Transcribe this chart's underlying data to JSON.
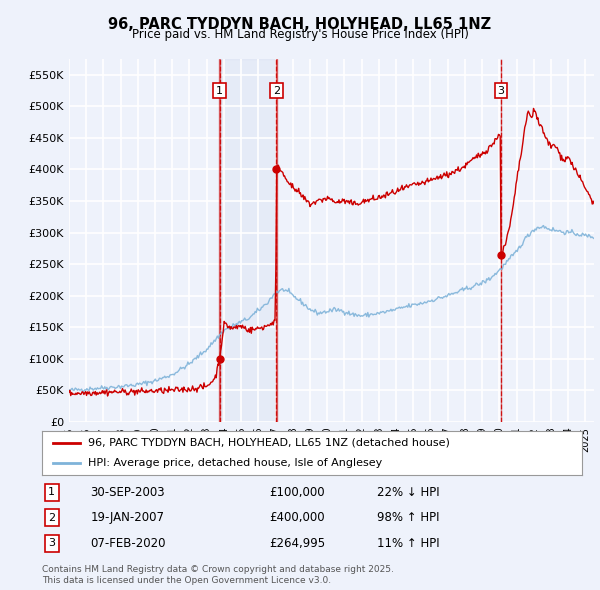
{
  "title": "96, PARC TYDDYN BACH, HOLYHEAD, LL65 1NZ",
  "subtitle": "Price paid vs. HM Land Registry's House Price Index (HPI)",
  "ylim": [
    0,
    575000
  ],
  "yticks": [
    0,
    50000,
    100000,
    150000,
    200000,
    250000,
    300000,
    350000,
    400000,
    450000,
    500000,
    550000
  ],
  "ytick_labels": [
    "£0",
    "£50K",
    "£100K",
    "£150K",
    "£200K",
    "£250K",
    "£300K",
    "£350K",
    "£400K",
    "£450K",
    "£500K",
    "£550K"
  ],
  "background_color": "#eef2fb",
  "plot_bg_color": "#eef2fb",
  "grid_color": "#ffffff",
  "line_color_red": "#cc0000",
  "line_color_blue": "#7fb3d9",
  "sale_markers": [
    {
      "num": 1,
      "date_idx": 2003.75,
      "price": 100000,
      "label": "30-SEP-2003",
      "amount": "£100,000",
      "pct": "22% ↓ HPI"
    },
    {
      "num": 2,
      "date_idx": 2007.05,
      "price": 400000,
      "label": "19-JAN-2007",
      "amount": "£400,000",
      "pct": "98% ↑ HPI"
    },
    {
      "num": 3,
      "date_idx": 2020.1,
      "price": 264995,
      "label": "07-FEB-2020",
      "amount": "£264,995",
      "pct": "11% ↑ HPI"
    }
  ],
  "legend_entries": [
    "96, PARC TYDDYN BACH, HOLYHEAD, LL65 1NZ (detached house)",
    "HPI: Average price, detached house, Isle of Anglesey"
  ],
  "footer": "Contains HM Land Registry data © Crown copyright and database right 2025.\nThis data is licensed under the Open Government Licence v3.0.",
  "xmin": 1995,
  "xmax": 2025.5,
  "hpi_anchors": [
    [
      1995.0,
      50000
    ],
    [
      1996.0,
      52000
    ],
    [
      1997.0,
      54000
    ],
    [
      1998.0,
      56000
    ],
    [
      1999.0,
      59000
    ],
    [
      2000.0,
      65000
    ],
    [
      2001.0,
      75000
    ],
    [
      2002.0,
      92000
    ],
    [
      2003.0,
      115000
    ],
    [
      2004.0,
      145000
    ],
    [
      2005.5,
      165000
    ],
    [
      2006.5,
      188000
    ],
    [
      2007.0,
      205000
    ],
    [
      2007.5,
      210000
    ],
    [
      2008.0,
      200000
    ],
    [
      2008.5,
      190000
    ],
    [
      2009.0,
      178000
    ],
    [
      2009.5,
      172000
    ],
    [
      2010.0,
      175000
    ],
    [
      2010.5,
      178000
    ],
    [
      2011.0,
      175000
    ],
    [
      2011.5,
      170000
    ],
    [
      2012.0,
      168000
    ],
    [
      2012.5,
      170000
    ],
    [
      2013.0,
      172000
    ],
    [
      2013.5,
      175000
    ],
    [
      2014.0,
      178000
    ],
    [
      2014.5,
      182000
    ],
    [
      2015.0,
      185000
    ],
    [
      2015.5,
      188000
    ],
    [
      2016.0,
      192000
    ],
    [
      2016.5,
      196000
    ],
    [
      2017.0,
      200000
    ],
    [
      2017.5,
      205000
    ],
    [
      2018.0,
      210000
    ],
    [
      2018.5,
      215000
    ],
    [
      2019.0,
      220000
    ],
    [
      2019.5,
      228000
    ],
    [
      2020.0,
      240000
    ],
    [
      2020.5,
      255000
    ],
    [
      2021.0,
      270000
    ],
    [
      2021.5,
      290000
    ],
    [
      2022.0,
      305000
    ],
    [
      2022.5,
      310000
    ],
    [
      2023.0,
      305000
    ],
    [
      2023.5,
      302000
    ],
    [
      2024.0,
      300000
    ],
    [
      2024.5,
      298000
    ],
    [
      2025.0,
      295000
    ],
    [
      2025.5,
      293000
    ]
  ],
  "red_anchors": [
    [
      1995.0,
      45000
    ],
    [
      1996.0,
      46000
    ],
    [
      1997.0,
      47000
    ],
    [
      1998.0,
      47500
    ],
    [
      1999.0,
      48000
    ],
    [
      2000.0,
      49000
    ],
    [
      2001.0,
      50000
    ],
    [
      2002.0,
      52000
    ],
    [
      2003.0,
      56000
    ],
    [
      2003.5,
      70000
    ],
    [
      2003.75,
      100000
    ],
    [
      2004.0,
      155000
    ],
    [
      2004.5,
      148000
    ],
    [
      2005.0,
      152000
    ],
    [
      2005.5,
      145000
    ],
    [
      2006.0,
      148000
    ],
    [
      2006.5,
      152000
    ],
    [
      2007.0,
      160000
    ],
    [
      2007.05,
      400000
    ],
    [
      2007.2,
      405000
    ],
    [
      2007.5,
      390000
    ],
    [
      2007.8,
      380000
    ],
    [
      2008.0,
      370000
    ],
    [
      2008.3,
      365000
    ],
    [
      2008.6,
      355000
    ],
    [
      2009.0,
      345000
    ],
    [
      2009.5,
      350000
    ],
    [
      2010.0,
      355000
    ],
    [
      2010.5,
      348000
    ],
    [
      2011.0,
      350000
    ],
    [
      2011.5,
      345000
    ],
    [
      2012.0,
      348000
    ],
    [
      2012.5,
      352000
    ],
    [
      2013.0,
      355000
    ],
    [
      2013.5,
      360000
    ],
    [
      2014.0,
      365000
    ],
    [
      2014.5,
      370000
    ],
    [
      2015.0,
      375000
    ],
    [
      2015.5,
      378000
    ],
    [
      2016.0,
      382000
    ],
    [
      2016.5,
      388000
    ],
    [
      2017.0,
      392000
    ],
    [
      2017.5,
      398000
    ],
    [
      2018.0,
      405000
    ],
    [
      2018.3,
      412000
    ],
    [
      2018.6,
      418000
    ],
    [
      2019.0,
      425000
    ],
    [
      2019.3,
      432000
    ],
    [
      2019.6,
      440000
    ],
    [
      2019.9,
      450000
    ],
    [
      2020.0,
      460000
    ],
    [
      2020.05,
      460000
    ],
    [
      2020.1,
      264995
    ],
    [
      2020.2,
      270000
    ],
    [
      2020.4,
      285000
    ],
    [
      2020.6,
      310000
    ],
    [
      2020.8,
      340000
    ],
    [
      2021.0,
      380000
    ],
    [
      2021.3,
      430000
    ],
    [
      2021.5,
      470000
    ],
    [
      2021.7,
      490000
    ],
    [
      2021.9,
      480000
    ],
    [
      2022.0,
      500000
    ],
    [
      2022.1,
      490000
    ],
    [
      2022.2,
      480000
    ],
    [
      2022.4,
      470000
    ],
    [
      2022.6,
      455000
    ],
    [
      2022.8,
      445000
    ],
    [
      2023.0,
      435000
    ],
    [
      2023.2,
      440000
    ],
    [
      2023.4,
      430000
    ],
    [
      2023.6,
      420000
    ],
    [
      2023.8,
      415000
    ],
    [
      2024.0,
      420000
    ],
    [
      2024.2,
      410000
    ],
    [
      2024.4,
      400000
    ],
    [
      2024.6,
      390000
    ],
    [
      2024.8,
      380000
    ],
    [
      2025.0,
      370000
    ],
    [
      2025.2,
      360000
    ],
    [
      2025.4,
      350000
    ],
    [
      2025.5,
      345000
    ]
  ]
}
